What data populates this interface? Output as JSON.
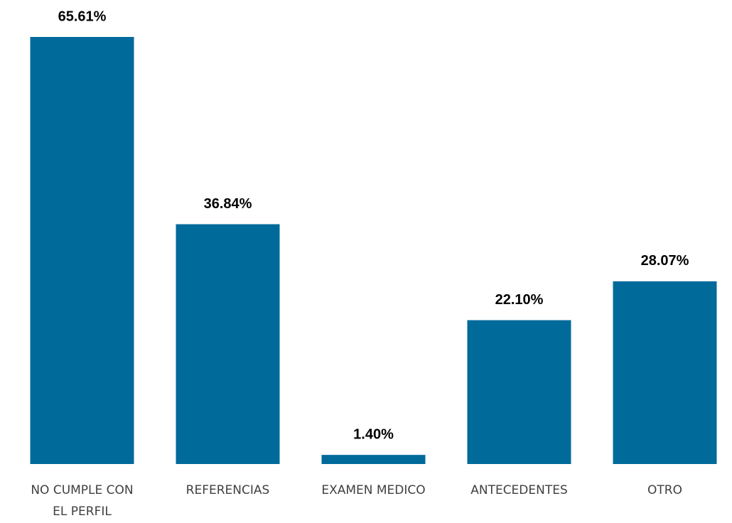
{
  "chart_data": {
    "type": "bar",
    "categories": [
      "NO CUMPLE CON EL PERFIL",
      "REFERENCIAS",
      "EXAMEN MEDICO",
      "ANTECEDENTES",
      "OTRO"
    ],
    "values": [
      65.61,
      36.84,
      1.4,
      22.1,
      28.07
    ],
    "value_labels": [
      "65.61%",
      "36.84%",
      "1.40%",
      "22.10%",
      "28.07%"
    ],
    "color": "#006a9b"
  }
}
